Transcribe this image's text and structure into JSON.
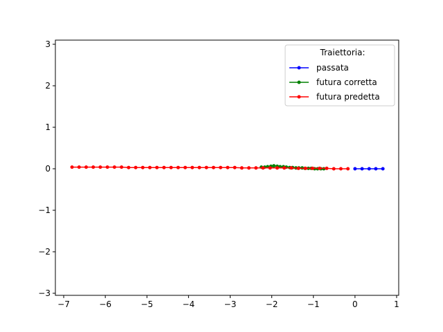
{
  "chart_data": {
    "type": "line",
    "title": "",
    "xlabel": "",
    "ylabel": "",
    "xlim": [
      -7.2,
      1.05
    ],
    "ylim": [
      -3.05,
      3.1
    ],
    "xticks": [
      -7,
      -6,
      -5,
      -4,
      -3,
      -2,
      -1,
      0,
      1
    ],
    "yticks": [
      -3,
      -2,
      -1,
      0,
      1,
      2,
      3
    ],
    "grid": false,
    "legend": {
      "title": "Traiettoria:",
      "position": "top-right"
    },
    "series": [
      {
        "name": "passata",
        "color": "#0000ff",
        "x": [
          0.0,
          0.17,
          0.34,
          0.5,
          0.67
        ],
        "y": [
          0.0,
          0.0,
          0.0,
          0.0,
          0.0
        ]
      },
      {
        "name": "futura corretta",
        "color": "#008000",
        "x": [
          -2.25,
          -2.17,
          -2.1,
          -2.02,
          -1.95,
          -1.87,
          -1.8,
          -1.72,
          -1.65,
          -1.57,
          -1.5,
          -1.42,
          -1.35,
          -1.27,
          -1.2,
          -1.12,
          -1.05,
          -0.97,
          -0.9,
          -0.82,
          -0.75
        ],
        "y": [
          0.04,
          0.04,
          0.05,
          0.06,
          0.07,
          0.06,
          0.05,
          0.05,
          0.04,
          0.03,
          0.03,
          0.02,
          0.02,
          0.02,
          0.01,
          0.01,
          0.01,
          0.0,
          0.0,
          0.0,
          0.0
        ]
      },
      {
        "name": "futura predetta",
        "color": "#ff0000",
        "x": [
          -6.8,
          -6.63,
          -6.46,
          -6.29,
          -6.12,
          -5.95,
          -5.78,
          -5.61,
          -5.44,
          -5.27,
          -5.1,
          -4.93,
          -4.76,
          -4.59,
          -4.42,
          -4.25,
          -4.08,
          -3.91,
          -3.74,
          -3.57,
          -3.4,
          -3.23,
          -3.06,
          -2.89,
          -2.72,
          -2.55,
          -2.38,
          -2.21,
          -2.04,
          -1.87,
          -1.7,
          -1.53,
          -1.36,
          -1.19,
          -1.02,
          -0.85,
          -0.68,
          -0.51,
          -0.34,
          -0.17
        ],
        "y": [
          0.04,
          0.04,
          0.04,
          0.04,
          0.04,
          0.04,
          0.04,
          0.04,
          0.03,
          0.03,
          0.03,
          0.03,
          0.03,
          0.03,
          0.03,
          0.03,
          0.03,
          0.03,
          0.03,
          0.03,
          0.03,
          0.03,
          0.03,
          0.03,
          0.02,
          0.02,
          0.02,
          0.02,
          0.02,
          0.02,
          0.02,
          0.02,
          0.01,
          0.01,
          0.01,
          0.01,
          0.01,
          0.0,
          0.0,
          0.0
        ]
      }
    ]
  }
}
